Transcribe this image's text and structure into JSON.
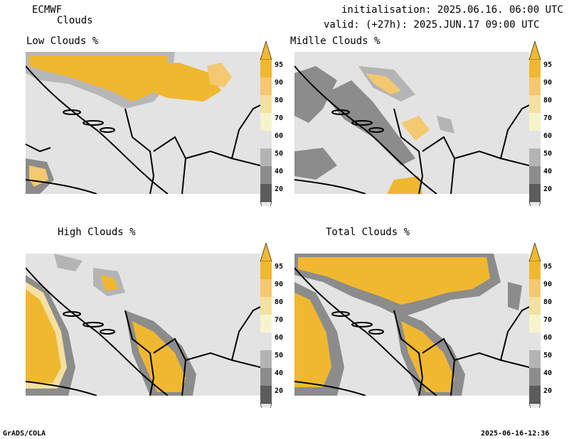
{
  "header": {
    "model": "ECMWF",
    "product": "Clouds",
    "init": "initialisation: 2025.06.16. 06:00 UTC",
    "valid": "valid: (+27h): 2025.JUN.17 09:00 UTC"
  },
  "panels": [
    {
      "title": "Low Clouds %"
    },
    {
      "title": "Midlle Clouds %"
    },
    {
      "title": "High Clouds %"
    },
    {
      "title": "Total Clouds %"
    }
  ],
  "colorbar": {
    "ticks": [
      "95",
      "90",
      "80",
      "70",
      "60",
      "50",
      "40",
      "20"
    ],
    "colors": {
      "c95": "#f0b830",
      "c90": "#f4c870",
      "c80": "#f4e0a0",
      "c70": "#f6f4cc",
      "c60": "#e3e3e3",
      "c50": "#b4b4b4",
      "c40": "#8c8c8c",
      "c20": "#5c5c5c",
      "top_arrow": "#f0b830",
      "bottom_arrow": "#e8e8e8"
    }
  },
  "footer": {
    "left": "GrADS/COLA",
    "right": "2025-06-16-12:36"
  }
}
